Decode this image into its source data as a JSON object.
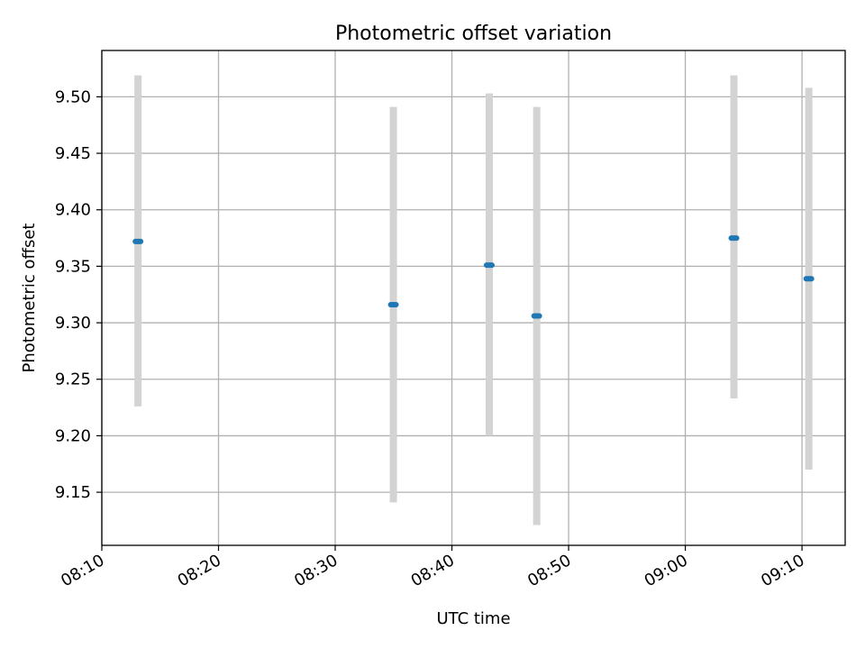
{
  "chart_data": {
    "type": "scatter",
    "title": "Photometric offset variation",
    "xlabel": "UTC time",
    "ylabel": "Photometric offset",
    "x_ticks": [
      "08:10",
      "08:20",
      "08:30",
      "08:40",
      "08:50",
      "09:00",
      "09:10"
    ],
    "x_tick_minutes": [
      0,
      10,
      20,
      30,
      40,
      50,
      60
    ],
    "xlim_minutes": [
      0,
      63.7
    ],
    "y_ticks": [
      "9.15",
      "9.20",
      "9.25",
      "9.30",
      "9.35",
      "9.40",
      "9.45",
      "9.50"
    ],
    "ylim": [
      9.103,
      9.541
    ],
    "grid": true,
    "points": [
      {
        "x": "08:13:06",
        "y": 9.372,
        "y_low": 9.226,
        "y_high": 9.519
      },
      {
        "x": "08:34:59",
        "y": 9.316,
        "y_low": 9.141,
        "y_high": 9.491
      },
      {
        "x": "08:43:12",
        "y": 9.351,
        "y_low": 9.2,
        "y_high": 9.503
      },
      {
        "x": "08:47:16",
        "y": 9.306,
        "y_low": 9.121,
        "y_high": 9.491
      },
      {
        "x": "09:04:10",
        "y": 9.375,
        "y_low": 9.233,
        "y_high": 9.519
      },
      {
        "x": "09:10:35",
        "y": 9.339,
        "y_low": 9.17,
        "y_high": 9.508
      }
    ],
    "colors": {
      "marker": "#1f77b4",
      "errorbar": "#d3d3d3",
      "grid": "#b0b0b0"
    }
  }
}
